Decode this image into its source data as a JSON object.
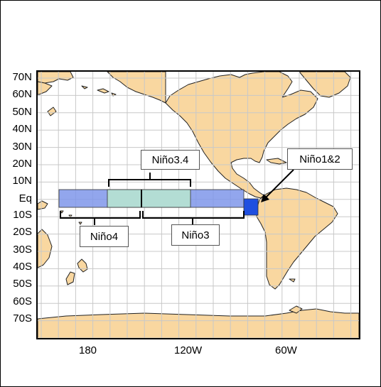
{
  "lat_labels": [
    "70N",
    "60N",
    "50N",
    "40N",
    "30N",
    "20N",
    "10N",
    "Eq",
    "10S",
    "20S",
    "30S",
    "40S",
    "50S",
    "60S",
    "70S"
  ],
  "lon_labels": [
    "180",
    "120W",
    "60W"
  ],
  "regions": [
    {
      "name": "Niño4",
      "label": "Niño4"
    },
    {
      "name": "Niño3.4",
      "label": "Niño3.4"
    },
    {
      "name": "Niño3",
      "label": "Niño3"
    },
    {
      "name": "Niño1&2",
      "label": "Niño1&2"
    }
  ],
  "colors": {
    "land": "#f9d7a0",
    "coast": "#222222",
    "grid": "#c8c8c8",
    "nino_strip": "#7f97ea",
    "nino34": "#b3ddd4",
    "nino12": "#1f4fe0"
  }
}
